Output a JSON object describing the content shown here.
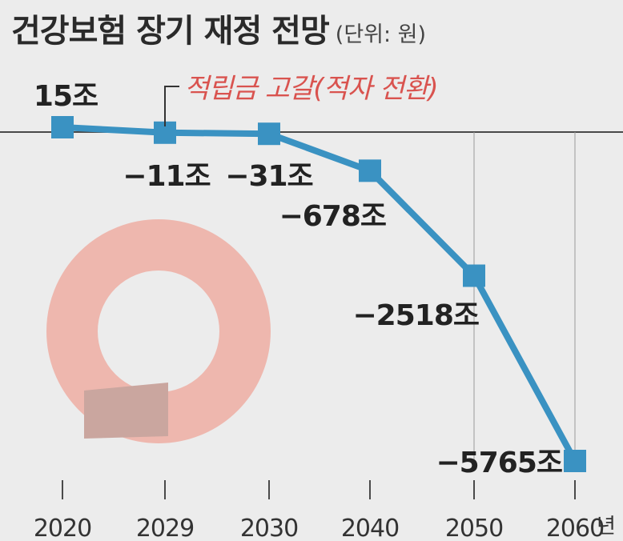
{
  "chart_data": {
    "type": "line",
    "title": "건강보험 장기 재정 전망",
    "unit": "(단위: 원)",
    "x": [
      "2020",
      "2029",
      "2030",
      "2040",
      "2050",
      "2060"
    ],
    "x_suffix": "년",
    "series": [
      {
        "values": [
          15,
          -11,
          -31,
          -678,
          -2518,
          -5765
        ]
      }
    ],
    "data_labels": [
      "15조",
      "−11조",
      "−31조",
      "−678조",
      "−2518조",
      "−5765조"
    ],
    "annotation": {
      "text": "적립금 고갈(적자 전환)",
      "x": "2029"
    },
    "colors": {
      "line": "#3a92c2",
      "annotation": "#d9534f",
      "axis": "#4a4a4a"
    }
  }
}
